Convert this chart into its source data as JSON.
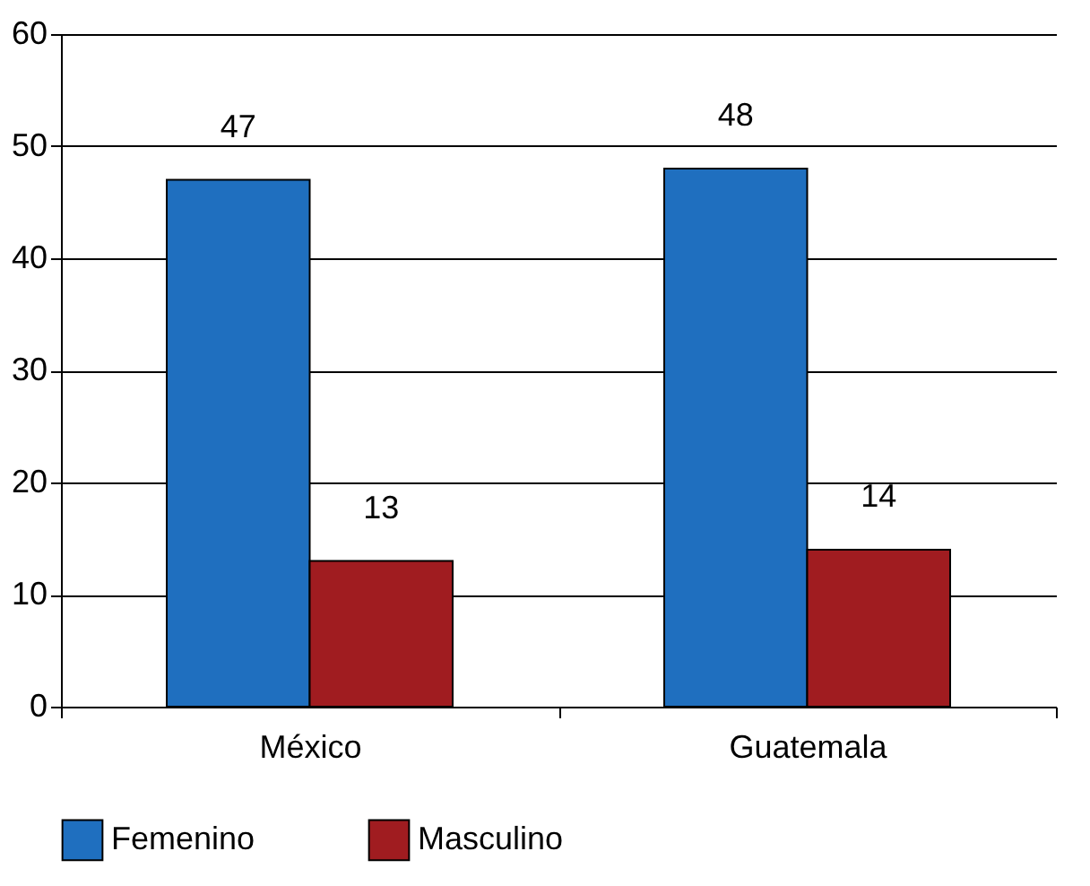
{
  "chart_data": {
    "type": "bar",
    "categories": [
      "México",
      "Guatemala"
    ],
    "series": [
      {
        "name": "Femenino",
        "color": "#1f6fbf",
        "values": [
          47,
          48
        ]
      },
      {
        "name": "Masculino",
        "color": "#a01c20",
        "values": [
          13,
          14
        ]
      }
    ],
    "ylim": [
      0,
      60
    ],
    "yticks": [
      0,
      10,
      20,
      30,
      40,
      50,
      60
    ],
    "grid": "y",
    "legend": "bottom",
    "data_labels": true
  }
}
